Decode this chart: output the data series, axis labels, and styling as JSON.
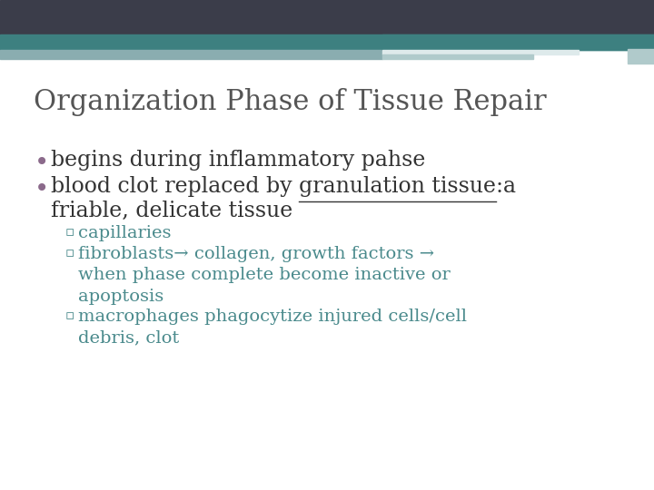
{
  "title": "Organization Phase of Tissue Repair",
  "title_color": "#555555",
  "title_fontsize": 22,
  "background_color": "#ffffff",
  "bullet_color": "#8B6A8B",
  "sub_color": "#4A8A8C",
  "text_color": "#333333",
  "bullet1": "begins during inflammatory pahse",
  "bullet2_line1": "blood clot replaced by granulation tissue:a",
  "bullet2_underline_start": "blood clot replaced by ",
  "bullet2_underline_text": "granulation tissue",
  "bullet2_line2": "friable, delicate tissue",
  "sub1": "capillaries",
  "sub2a": "fibroblasts→ collagen, growth factors →",
  "sub2b": "when phase complete become inactive or",
  "sub2c": "apoptosis",
  "sub3a": "macrophages phagocytize injured cells/cell",
  "sub3b": "debris, clot",
  "header_dark": "#3B3D4A",
  "header_teal": "#3D8080",
  "header_light1": "#8AADB0",
  "header_light2": "#B0CACB",
  "header_white": "#DEEAEB"
}
